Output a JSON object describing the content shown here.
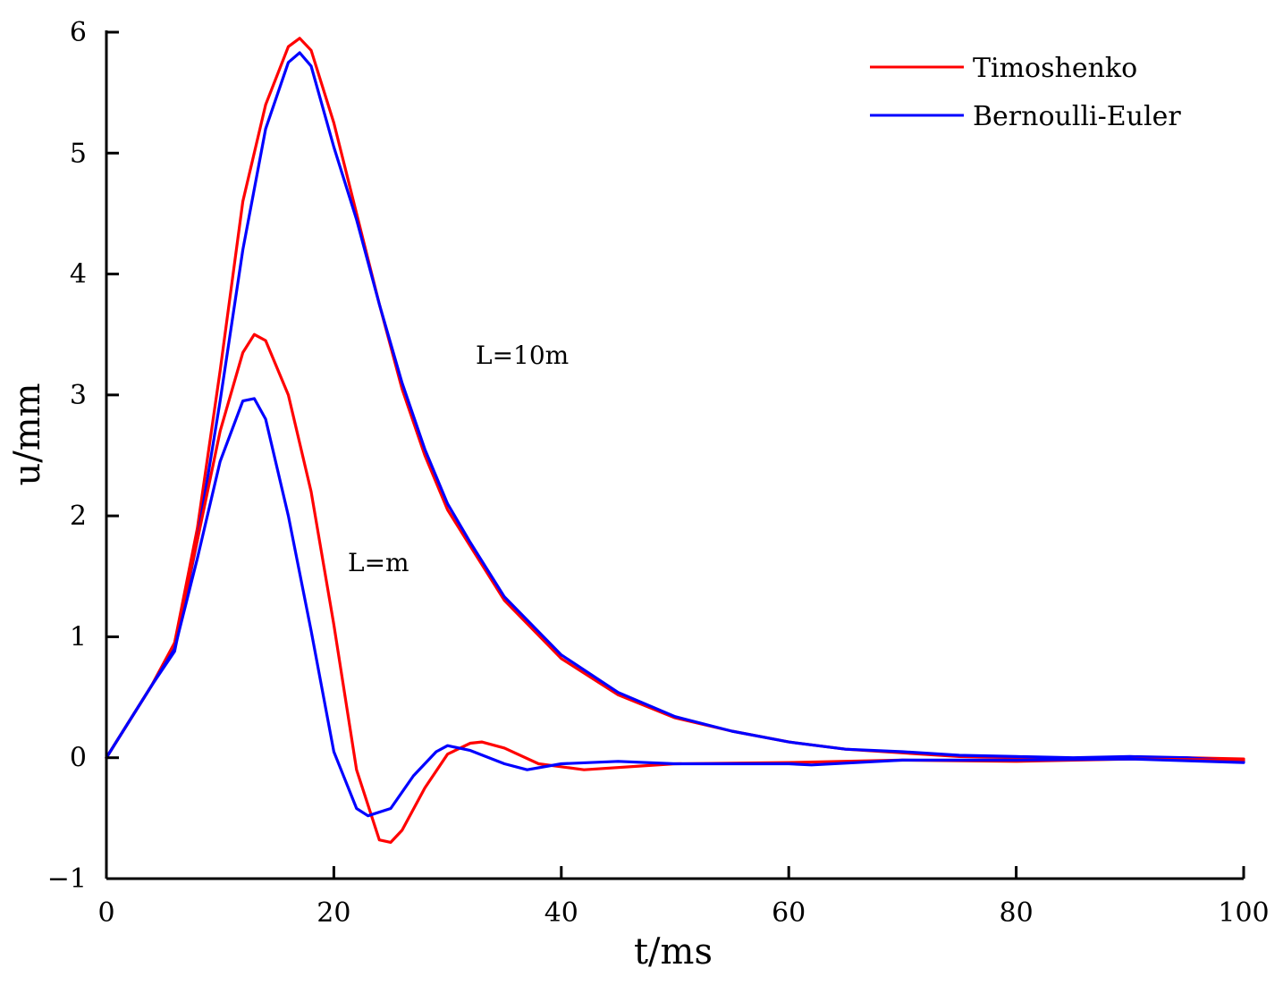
{
  "chart_data": {
    "type": "line",
    "title": "",
    "xlabel": "t/ms",
    "ylabel": "u/mm",
    "xlim": [
      0,
      100
    ],
    "ylim": [
      -1,
      6
    ],
    "xticks": [
      0,
      20,
      40,
      60,
      80,
      100
    ],
    "yticks": [
      -1,
      0,
      1,
      2,
      3,
      4,
      5,
      6
    ],
    "xtick_labels": [
      "0",
      "20",
      "40",
      "60",
      "80",
      "100"
    ],
    "ytick_labels": [
      "−1",
      "0",
      "1",
      "2",
      "3",
      "4",
      "5",
      "6"
    ],
    "grid": false,
    "legend": {
      "position": "top-right",
      "entries": [
        {
          "name": "Timoshenko",
          "color": "#ff0000"
        },
        {
          "name": "Bernoulli-Euler",
          "color": "#0000ff"
        }
      ]
    },
    "annotations": [
      {
        "text": "L=10m",
        "x": 33,
        "y": 3.3
      },
      {
        "text": "L=m",
        "x": 21,
        "y": 1.57
      }
    ],
    "series": [
      {
        "name": "Timoshenko",
        "group": "L=10m",
        "color": "#ff0000",
        "x": [
          0,
          2,
          4,
          6,
          8,
          10,
          12,
          14,
          16,
          17,
          18,
          20,
          22,
          24,
          26,
          28,
          30,
          32,
          35,
          40,
          45,
          50,
          55,
          60,
          65,
          70,
          75,
          80,
          85,
          90,
          95,
          100
        ],
        "y": [
          0,
          0.3,
          0.6,
          0.95,
          1.9,
          3.2,
          4.6,
          5.4,
          5.88,
          5.95,
          5.85,
          5.25,
          4.5,
          3.75,
          3.05,
          2.5,
          2.05,
          1.75,
          1.3,
          0.82,
          0.52,
          0.33,
          0.22,
          0.13,
          0.07,
          0.04,
          0.01,
          0,
          -0.01,
          0,
          0,
          -0.01
        ]
      },
      {
        "name": "Bernoulli-Euler",
        "group": "L=10m",
        "color": "#0000ff",
        "x": [
          0,
          2,
          4,
          6,
          8,
          10,
          12,
          14,
          16,
          17,
          18,
          20,
          22,
          24,
          26,
          28,
          30,
          32,
          35,
          40,
          45,
          50,
          55,
          60,
          65,
          70,
          75,
          80,
          85,
          90,
          95,
          100
        ],
        "y": [
          0,
          0.3,
          0.6,
          0.88,
          1.8,
          2.95,
          4.2,
          5.2,
          5.75,
          5.83,
          5.72,
          5.05,
          4.45,
          3.75,
          3.1,
          2.55,
          2.1,
          1.78,
          1.33,
          0.85,
          0.54,
          0.34,
          0.22,
          0.13,
          0.07,
          0.05,
          0.02,
          0.01,
          0,
          0.01,
          0,
          -0.03
        ]
      },
      {
        "name": "Timoshenko",
        "group": "L=m",
        "color": "#ff0000",
        "x": [
          0,
          2,
          4,
          6,
          8,
          10,
          12,
          13,
          14,
          16,
          18,
          20,
          22,
          24,
          25,
          26,
          28,
          30,
          32,
          33,
          35,
          38,
          42,
          50,
          60,
          70,
          80,
          90,
          100
        ],
        "y": [
          0,
          0.3,
          0.6,
          0.95,
          1.8,
          2.7,
          3.35,
          3.5,
          3.45,
          3.0,
          2.2,
          1.1,
          -0.1,
          -0.68,
          -0.7,
          -0.6,
          -0.25,
          0.03,
          0.12,
          0.13,
          0.08,
          -0.05,
          -0.1,
          -0.05,
          -0.04,
          -0.02,
          -0.03,
          -0.01,
          -0.02
        ]
      },
      {
        "name": "Bernoulli-Euler",
        "group": "L=m",
        "color": "#0000ff",
        "x": [
          0,
          2,
          4,
          6,
          8,
          10,
          12,
          13,
          14,
          16,
          18,
          20,
          22,
          23,
          25,
          27,
          29,
          30,
          32,
          35,
          37,
          40,
          45,
          50,
          55,
          60,
          62,
          70,
          80,
          90,
          100
        ],
        "y": [
          0,
          0.3,
          0.6,
          0.9,
          1.65,
          2.45,
          2.95,
          2.97,
          2.8,
          2.0,
          1.05,
          0.05,
          -0.42,
          -0.48,
          -0.42,
          -0.15,
          0.05,
          0.1,
          0.06,
          -0.05,
          -0.1,
          -0.05,
          -0.03,
          -0.05,
          -0.05,
          -0.05,
          -0.06,
          -0.02,
          -0.02,
          -0.01,
          -0.04
        ]
      }
    ]
  }
}
